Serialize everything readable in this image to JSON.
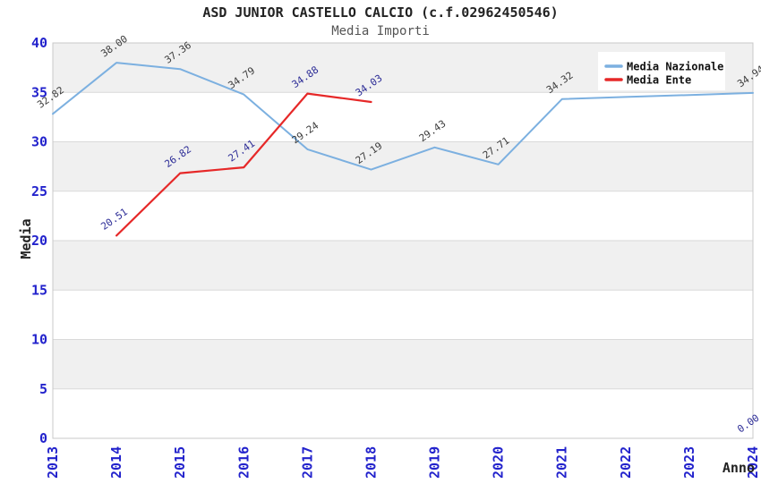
{
  "title": "ASD JUNIOR CASTELLO CALCIO (c.f.02962450546)",
  "subtitle": "Media Importi",
  "colors": {
    "title": "#222222",
    "subtitle": "#555555",
    "axis_title": "#222222",
    "tick": "#2222cc",
    "band": "#f0f0f0",
    "grid": "#d9d9d9",
    "plot_border": "#c8c8c8",
    "legend_background": "#ffffff",
    "legend_text": "#111111"
  },
  "chart_data": {
    "type": "line",
    "title": "ASD JUNIOR CASTELLO CALCIO (c.f.02962450546)",
    "subtitle": "Media Importi",
    "xlabel": "Anno",
    "ylabel": "Media",
    "ylim": [
      0,
      40
    ],
    "y_ticks": [
      0,
      5,
      10,
      15,
      20,
      25,
      30,
      35,
      40
    ],
    "x": [
      "2013",
      "2014",
      "2015",
      "2016",
      "2017",
      "2018",
      "2019",
      "2020",
      "2021",
      "2022",
      "2023",
      "2024"
    ],
    "x_tick_rotation": -90,
    "grid": "horizontal-alternating-bands",
    "legend_position": "top-right",
    "series": [
      {
        "name": "Media Nazionale",
        "color": "#7cb0e0",
        "label_color": "#3c3c3c",
        "stroke_width": 2,
        "values": [
          32.82,
          38.0,
          37.36,
          34.79,
          29.24,
          27.19,
          29.43,
          27.71,
          34.32,
          34.53,
          34.73,
          34.94
        ],
        "point_labels": [
          "32.82",
          "38.00",
          "37.36",
          "34.79",
          "29.24",
          "27.19",
          "29.43",
          "27.71",
          "34.32",
          "",
          "",
          "34.94"
        ]
      },
      {
        "name": "Media Ente",
        "color": "#e62828",
        "label_color": "#2b2b96",
        "stroke_width": 2.2,
        "values": [
          null,
          20.51,
          26.82,
          27.41,
          34.88,
          34.03,
          null,
          null,
          null,
          null,
          null,
          0.0
        ],
        "point_labels": [
          "",
          "20.51",
          "26.82",
          "27.41",
          "34.88",
          "34.03",
          "",
          "",
          "",
          "",
          "",
          "0.00"
        ]
      }
    ]
  }
}
